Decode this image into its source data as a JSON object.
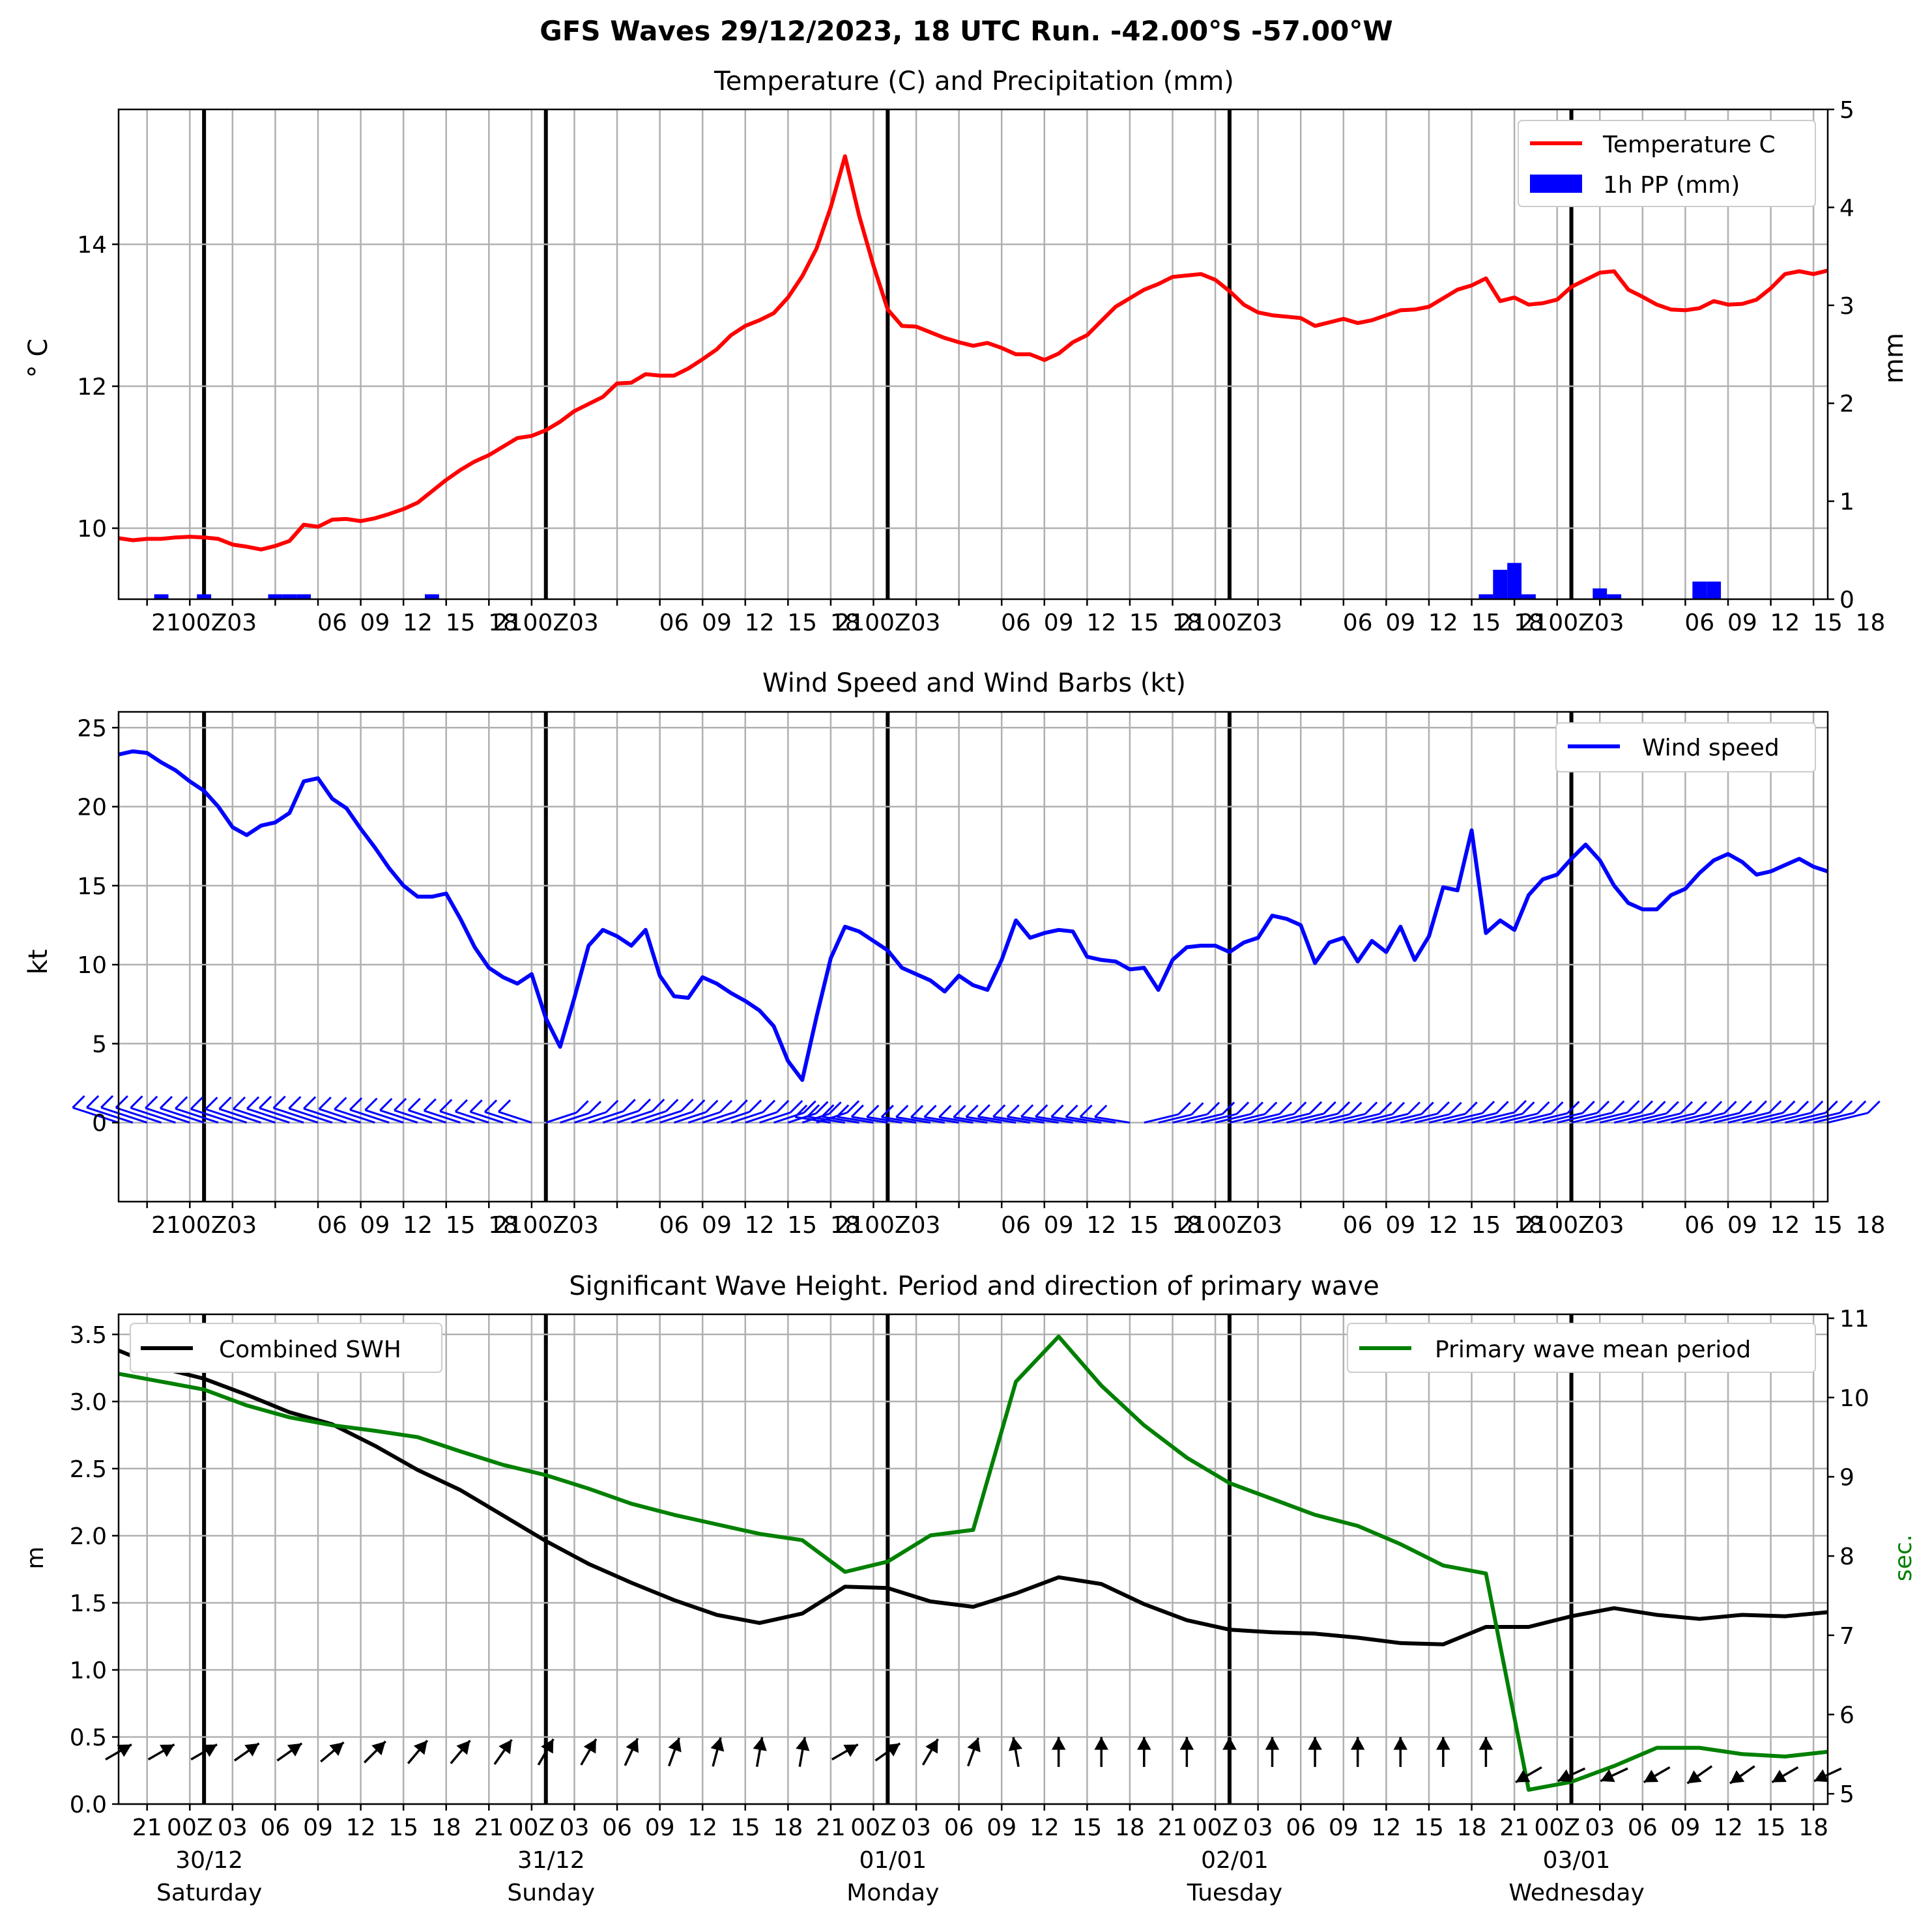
{
  "suptitle": "GFS Waves 29/12/2023, 18 UTC Run. -42.00°S -57.00°W",
  "x_tick_labels": [
    "21",
    "00Z",
    "03",
    "06",
    "09",
    "12",
    "15",
    "18",
    "21",
    "00Z",
    "03",
    "06",
    "09",
    "12",
    "15",
    "18",
    "21",
    "00Z",
    "03",
    "06",
    "09",
    "12",
    "15",
    "18",
    "21",
    "00Z",
    "03",
    "06",
    "09",
    "12",
    "15",
    "18",
    "21",
    "00Z",
    "03",
    "06",
    "09",
    "12",
    "15",
    "18"
  ],
  "x_tick_labels_top": [
    "2100Z03",
    "06",
    "09",
    "12",
    "15",
    "18",
    "2100Z03",
    "06",
    "09",
    "12",
    "15",
    "18",
    "2100Z03",
    "06",
    "09",
    "12",
    "15",
    "18",
    "2100Z03",
    "06",
    "09",
    "12",
    "15",
    "18",
    "2100Z03",
    "06",
    "09",
    "12",
    "15",
    "18"
  ],
  "day_labels": [
    {
      "date": "30/12",
      "weekday": "Saturday"
    },
    {
      "date": "31/12",
      "weekday": "Sunday"
    },
    {
      "date": "01/01",
      "weekday": "Monday"
    },
    {
      "date": "02/01",
      "weekday": "Tuesday"
    },
    {
      "date": "03/01",
      "weekday": "Wednesday"
    }
  ],
  "chart_data": [
    {
      "type": "line",
      "title": "Temperature (C) and Precipitation (mm)",
      "ylabel": "$^\\circ$C",
      "ylabel_display": "° C",
      "ylabel_right": "mm",
      "ylim": [
        9.0,
        15.9
      ],
      "ylim_right": [
        0,
        5
      ],
      "yticks": [
        10,
        12,
        14
      ],
      "yticks_right": [
        0,
        1,
        2,
        3,
        4,
        5
      ],
      "x_unit": "hours since 29/12 18Z",
      "x_range": [
        0,
        120
      ],
      "grid": true,
      "legend_position": "upper right",
      "series": [
        {
          "name": "Temperature C",
          "color": "#ff0000",
          "x": [
            0,
            1,
            2,
            3,
            4,
            5,
            6,
            7,
            8,
            9,
            10,
            11,
            12,
            13,
            14,
            15,
            16,
            17,
            18,
            19,
            20,
            21,
            22,
            23,
            24,
            25,
            26,
            27,
            28,
            29,
            30,
            31,
            32,
            33,
            34,
            35,
            36,
            37,
            38,
            39,
            40,
            41,
            42,
            43,
            44,
            45,
            46,
            47,
            48,
            49,
            50,
            51,
            52,
            53,
            54,
            55,
            56,
            57,
            58,
            59,
            60,
            61,
            62,
            63,
            64,
            65,
            66,
            67,
            68,
            69,
            70,
            71,
            72,
            73,
            74,
            75,
            76,
            77,
            78,
            79,
            80,
            81,
            82,
            83,
            84,
            85,
            86,
            87,
            88,
            89,
            90,
            91,
            92,
            93,
            94,
            95,
            96,
            97,
            98,
            99,
            100,
            101,
            102,
            103,
            104,
            105,
            106,
            107,
            108,
            109,
            110,
            111,
            112,
            113,
            114,
            115,
            116,
            117,
            118,
            119,
            120
          ],
          "values": [
            9.86,
            9.83,
            9.85,
            9.85,
            9.87,
            9.88,
            9.87,
            9.85,
            9.77,
            9.74,
            9.7,
            9.75,
            9.82,
            10.05,
            10.02,
            10.12,
            10.13,
            10.1,
            10.14,
            10.2,
            10.27,
            10.36,
            10.52,
            10.68,
            10.82,
            10.94,
            11.03,
            11.15,
            11.27,
            11.3,
            11.38,
            11.5,
            11.65,
            11.75,
            11.85,
            12.04,
            12.05,
            12.17,
            12.15,
            12.15,
            12.25,
            12.38,
            12.52,
            12.72,
            12.85,
            12.93,
            13.03,
            13.25,
            13.55,
            13.94,
            14.52,
            15.24,
            14.4,
            13.7,
            13.08,
            12.85,
            12.84,
            12.76,
            12.68,
            12.62,
            12.57,
            12.61,
            12.54,
            12.45,
            12.45,
            12.37,
            12.46,
            12.62,
            12.72,
            12.92,
            13.12,
            13.24,
            13.36,
            13.44,
            13.54,
            13.56,
            13.58,
            13.5,
            13.34,
            13.15,
            13.04,
            13.0,
            12.98,
            12.96,
            12.85,
            12.9,
            12.95,
            12.89,
            12.93,
            13.0,
            13.07,
            13.08,
            13.12,
            13.24,
            13.36,
            13.42,
            13.52,
            13.2,
            13.25,
            13.15,
            13.17,
            13.22,
            13.4,
            13.5,
            13.6,
            13.62,
            13.36,
            13.26,
            13.15,
            13.08,
            13.07,
            13.1,
            13.2,
            13.15,
            13.16,
            13.22,
            13.38,
            13.58,
            13.62,
            13.58,
            13.63
          ]
        },
        {
          "name": "1h PP (mm)",
          "color": "#0000ff",
          "kind": "bar",
          "axis": "right",
          "x": [
            3,
            6,
            11,
            12,
            13,
            22,
            96,
            97,
            98,
            99,
            104,
            105,
            111,
            112
          ],
          "values": [
            0.05,
            0.05,
            0.05,
            0.05,
            0.05,
            0.05,
            0.05,
            0.3,
            0.37,
            0.05,
            0.11,
            0.05,
            0.18,
            0.18
          ]
        }
      ]
    },
    {
      "type": "line",
      "title": "Wind Speed and Wind Barbs (kt)",
      "ylabel": "kt",
      "ylim": [
        -5,
        26
      ],
      "yticks": [
        0,
        5,
        10,
        15,
        20,
        25
      ],
      "x_unit": "hours since 29/12 18Z",
      "x_range": [
        0,
        120
      ],
      "grid": true,
      "legend_position": "upper right",
      "series": [
        {
          "name": "Wind speed",
          "color": "#0000ff",
          "x": [
            0,
            1,
            2,
            3,
            4,
            5,
            6,
            7,
            8,
            9,
            10,
            11,
            12,
            13,
            14,
            15,
            16,
            17,
            18,
            19,
            20,
            21,
            22,
            23,
            24,
            25,
            26,
            27,
            28,
            29,
            30,
            31,
            32,
            33,
            34,
            35,
            36,
            37,
            38,
            39,
            40,
            41,
            42,
            43,
            44,
            45,
            46,
            47,
            48,
            49,
            50,
            51,
            52,
            53,
            54,
            55,
            56,
            57,
            58,
            59,
            60,
            61,
            62,
            63,
            64,
            65,
            66,
            67,
            68,
            69,
            70,
            71,
            72,
            73,
            74,
            75,
            76,
            77,
            78,
            79,
            80,
            81,
            82,
            83,
            84,
            85,
            86,
            87,
            88,
            89,
            90,
            91,
            92,
            93,
            94,
            95,
            96,
            97,
            98,
            99,
            100,
            101,
            102,
            103,
            104,
            105,
            106,
            107,
            108,
            109,
            110,
            111,
            112,
            113,
            114,
            115,
            116,
            117,
            118,
            119,
            120
          ],
          "values": [
            23.3,
            23.5,
            23.4,
            22.8,
            22.3,
            21.6,
            21.0,
            20.0,
            18.7,
            18.2,
            18.8,
            19.0,
            19.6,
            21.6,
            21.8,
            20.5,
            19.9,
            18.6,
            17.4,
            16.1,
            15.0,
            14.3,
            14.3,
            14.5,
            12.9,
            11.1,
            9.8,
            9.2,
            8.8,
            9.4,
            6.6,
            4.8,
            7.9,
            11.2,
            12.2,
            11.8,
            11.2,
            12.2,
            9.3,
            8.0,
            7.9,
            9.2,
            8.8,
            8.2,
            7.7,
            7.1,
            6.1,
            3.9,
            2.7,
            6.7,
            10.4,
            12.4,
            12.1,
            11.5,
            10.9,
            9.8,
            9.4,
            9.0,
            8.3,
            9.3,
            8.7,
            8.4,
            10.3,
            12.8,
            11.7,
            12.0,
            12.2,
            12.1,
            10.5,
            10.3,
            10.2,
            9.7,
            9.8,
            8.4,
            10.3,
            11.1,
            11.2,
            11.2,
            10.8,
            11.4,
            11.7,
            13.1,
            12.9,
            12.5,
            10.1,
            11.4,
            11.7,
            10.2,
            11.5,
            10.8,
            12.4,
            10.3,
            11.8,
            14.9,
            14.7,
            18.5,
            12.0,
            12.8,
            12.2,
            14.4,
            15.4,
            15.7,
            16.7,
            17.6,
            16.6,
            15.0,
            13.9,
            13.5,
            13.5,
            14.4,
            14.8,
            15.8,
            16.6,
            17.0,
            16.5,
            15.7,
            15.9,
            16.3,
            16.7,
            16.2,
            15.9
          ]
        }
      ]
    },
    {
      "type": "line",
      "title": "Significant Wave Height. Period and direction of primary wave",
      "ylabel": "m",
      "ylabel_right": "sec.",
      "ylim": [
        0,
        3.65
      ],
      "ylim_right": [
        4.87,
        11.05
      ],
      "yticks": [
        0.0,
        0.5,
        1.0,
        1.5,
        2.0,
        2.5,
        3.0,
        3.5
      ],
      "yticks_right": [
        5,
        6,
        7,
        8,
        9,
        10,
        11
      ],
      "x_unit": "hours since 29/12 18Z",
      "x_range": [
        0,
        120
      ],
      "grid": true,
      "legend_positions": [
        "upper left",
        "upper right"
      ],
      "series": [
        {
          "name": "Combined SWH",
          "color": "#000000",
          "x": [
            0,
            3,
            6,
            9,
            12,
            15,
            18,
            21,
            24,
            27,
            30,
            33,
            36,
            39,
            42,
            45,
            48,
            51,
            54,
            57,
            60,
            63,
            66,
            69,
            72,
            75,
            78,
            81,
            84,
            87,
            90,
            93,
            96,
            99,
            102,
            105,
            108,
            111,
            114,
            117,
            120
          ],
          "values": [
            3.38,
            3.25,
            3.17,
            3.05,
            2.92,
            2.83,
            2.67,
            2.49,
            2.34,
            2.15,
            1.96,
            1.79,
            1.65,
            1.52,
            1.41,
            1.35,
            1.42,
            1.62,
            1.61,
            1.51,
            1.47,
            1.57,
            1.69,
            1.64,
            1.49,
            1.37,
            1.3,
            1.28,
            1.27,
            1.24,
            1.2,
            1.19,
            1.32,
            1.32,
            1.4,
            1.46,
            1.41,
            1.38,
            1.41,
            1.4,
            1.43
          ]
        },
        {
          "name": "Primary wave mean period",
          "color": "#008000",
          "axis": "right",
          "x": [
            0,
            3,
            6,
            9,
            12,
            15,
            18,
            21,
            24,
            27,
            30,
            33,
            36,
            39,
            42,
            45,
            48,
            51,
            54,
            57,
            60,
            63,
            66,
            69,
            72,
            75,
            78,
            81,
            84,
            87,
            90,
            93,
            96,
            99,
            102,
            105,
            108,
            111,
            114,
            117,
            120
          ],
          "values": [
            10.3,
            10.2,
            10.1,
            9.9,
            9.75,
            9.65,
            9.58,
            9.5,
            9.32,
            9.15,
            9.02,
            8.85,
            8.66,
            8.52,
            8.4,
            8.28,
            8.2,
            7.8,
            7.93,
            8.26,
            8.33,
            10.2,
            10.77,
            10.15,
            9.65,
            9.24,
            8.92,
            8.72,
            8.52,
            8.38,
            8.15,
            7.88,
            7.78,
            5.05,
            5.15,
            5.35,
            5.58,
            5.58,
            5.5,
            5.47,
            5.53
          ]
        },
        {
          "name": "primary wave direction",
          "kind": "arrows",
          "color": "#000000",
          "x": [
            0,
            3,
            6,
            9,
            12,
            15,
            18,
            21,
            24,
            27,
            30,
            33,
            36,
            39,
            42,
            45,
            48,
            51,
            54,
            57,
            60,
            63,
            66,
            69,
            72,
            75,
            78,
            81,
            84,
            87,
            90,
            93,
            96,
            99,
            102,
            105,
            108,
            111,
            114,
            117,
            120
          ],
          "values_deg": [
            60,
            60,
            60,
            55,
            55,
            50,
            45,
            40,
            40,
            35,
            30,
            30,
            25,
            20,
            15,
            10,
            10,
            60,
            55,
            30,
            20,
            -10,
            0,
            0,
            0,
            0,
            0,
            0,
            0,
            0,
            0,
            0,
            0,
            240,
            245,
            245,
            240,
            235,
            235,
            240,
            245
          ]
        }
      ]
    }
  ]
}
